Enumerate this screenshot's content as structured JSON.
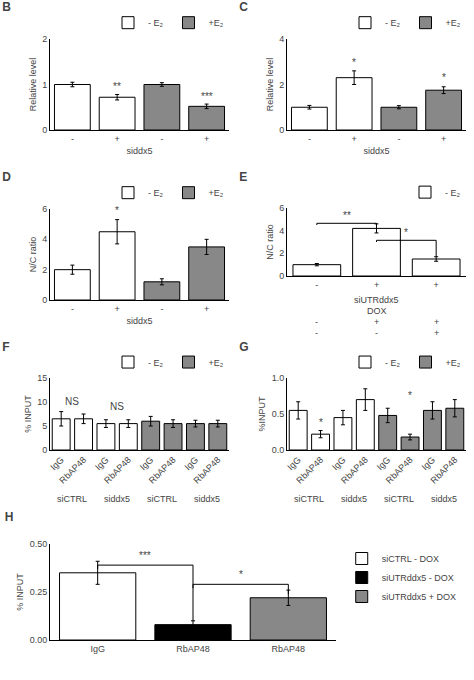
{
  "chart_data": [
    {
      "type": "bar",
      "title": "B",
      "categories": [
        "-",
        "+",
        "-",
        "+"
      ],
      "xlabel": "siddx5",
      "ylabel": "Relative level",
      "series": [
        {
          "name": "- E₂",
          "color": "white",
          "values": [
            1.0,
            0.72,
            null,
            null
          ],
          "errors": [
            0.05,
            0.06,
            null,
            null
          ]
        },
        {
          "name": "+E₂",
          "color": "#888888",
          "values": [
            null,
            null,
            1.0,
            0.52
          ],
          "errors": [
            null,
            null,
            0.04,
            0.05
          ]
        }
      ],
      "ylim": [
        0,
        2
      ],
      "yticks": [
        0,
        1,
        2
      ],
      "grid": false,
      "legend": "top",
      "annotations": [
        {
          "x": 1,
          "y": 0.79,
          "text": "**"
        },
        {
          "x": 3,
          "y": 0.58,
          "text": "***"
        }
      ]
    },
    {
      "type": "bar",
      "title": "C",
      "categories": [
        "-",
        "+",
        "-",
        "+"
      ],
      "xlabel": "siddx5",
      "ylabel": "Relative level",
      "series": [
        {
          "name": "- E₂",
          "color": "white",
          "values": [
            1.0,
            2.3,
            null,
            null
          ],
          "errors": [
            0.08,
            0.3,
            null,
            null
          ]
        },
        {
          "name": "+E₂",
          "color": "#888888",
          "values": [
            null,
            null,
            1.0,
            1.75
          ],
          "errors": [
            null,
            null,
            0.07,
            0.15
          ]
        }
      ],
      "ylim": [
        0,
        4
      ],
      "yticks": [
        0,
        2,
        4
      ],
      "grid": false,
      "legend": "top",
      "annotations": [
        {
          "x": 1,
          "y": 2.65,
          "text": "*"
        },
        {
          "x": 3,
          "y": 2.0,
          "text": "*"
        }
      ]
    },
    {
      "type": "bar",
      "title": "D",
      "categories": [
        "-",
        "+",
        "-",
        "+"
      ],
      "xlabel": "siddx5",
      "ylabel": "N/C ratio",
      "series": [
        {
          "name": "- E₂",
          "color": "white",
          "values": [
            2.0,
            4.5,
            null,
            null
          ],
          "errors": [
            0.3,
            0.8,
            null,
            null
          ]
        },
        {
          "name": "+E₂",
          "color": "#888888",
          "values": [
            null,
            null,
            1.2,
            3.5
          ],
          "errors": [
            null,
            null,
            0.2,
            0.5
          ]
        }
      ],
      "ylim": [
        0,
        6
      ],
      "yticks": [
        0,
        2,
        4,
        6
      ],
      "grid": false,
      "legend": "top",
      "annotations": [
        {
          "x": 1,
          "y": 5.4,
          "text": "*"
        }
      ]
    },
    {
      "type": "bar",
      "title": "E",
      "categories": [
        "-",
        "+",
        "+"
      ],
      "ylabel": "N/C ratio",
      "series": [
        {
          "name": "- E₂",
          "color": "white",
          "values": [
            1.0,
            4.2,
            1.5
          ],
          "errors": [
            0.1,
            0.4,
            0.2
          ]
        }
      ],
      "ylim": [
        0,
        6
      ],
      "yticks": [
        0,
        2,
        4,
        6
      ],
      "grid": false,
      "legend": "top",
      "annotations": [
        {
          "x": 0.5,
          "y": 4.7,
          "text": "**",
          "bracket": {
            "x": [
              0,
              0,
              1,
              1
            ],
            "y": [
              4.5,
              4.65,
              4.65,
              4.3
            ]
          }
        },
        {
          "x": 1.5,
          "y": 3.2,
          "text": "*",
          "bracket": {
            "x": [
              1,
              1,
              2,
              2
            ],
            "y": [
              3.0,
              3.15,
              3.15,
              1.7
            ]
          }
        },
        {
          "x": 1,
          "row": 1,
          "text": "siUTRddx5"
        },
        {
          "x": 1,
          "row": 2,
          "text": "DOX"
        },
        {
          "x": 0,
          "row": 3,
          "text": "-"
        },
        {
          "x": 1,
          "row": 3,
          "text": "+"
        },
        {
          "x": 2,
          "row": 3,
          "text": "+"
        },
        {
          "x": 0,
          "row": 4,
          "text": "-"
        },
        {
          "x": 1,
          "row": 4,
          "text": "-"
        },
        {
          "x": 2,
          "row": 4,
          "text": "+"
        }
      ]
    },
    {
      "type": "bar",
      "title": "F",
      "categories": [
        "IgG",
        "RbAP48",
        "IgG",
        "RbAP48",
        "IgG",
        "RbAP48",
        "IgG",
        "RbAP48"
      ],
      "ylabel": "% INPUT",
      "series": [
        {
          "name": "- E₂",
          "color": "white",
          "values": [
            6.5,
            6.5,
            5.5,
            5.5,
            null,
            null,
            null,
            null
          ],
          "errors": [
            1.5,
            1.0,
            0.8,
            0.8,
            null,
            null,
            null,
            null
          ]
        },
        {
          "name": "+E₂",
          "color": "#888888",
          "values": [
            null,
            null,
            null,
            null,
            6.0,
            5.5,
            5.5,
            5.5
          ],
          "errors": [
            null,
            null,
            null,
            null,
            1.0,
            0.8,
            0.7,
            0.7
          ]
        }
      ],
      "ylim": [
        0,
        15
      ],
      "yticks": [
        0,
        5,
        10,
        15
      ],
      "grid": false,
      "legend": "top",
      "annotations": [
        {
          "x": 0.5,
          "y": 8.5,
          "text": "NS"
        },
        {
          "x": 2.5,
          "y": 7.5,
          "text": "NS"
        },
        {
          "x": 0.5,
          "row": 1,
          "text": "siCTRL"
        },
        {
          "x": 2.5,
          "row": 1,
          "text": "siddx5"
        },
        {
          "x": 4.5,
          "row": 1,
          "text": "siCTRL"
        },
        {
          "x": 6.5,
          "row": 1,
          "text": "siddx5"
        }
      ]
    },
    {
      "type": "bar",
      "title": "G",
      "categories": [
        "IgG",
        "RbAP48",
        "IgG",
        "RbAP48",
        "IgG",
        "RbAP48",
        "IgG",
        "RbAP48"
      ],
      "ylabel": "%INPUT",
      "series": [
        {
          "name": "- E₂",
          "color": "white",
          "values": [
            0.55,
            0.22,
            0.45,
            0.7,
            null,
            null,
            null,
            null
          ],
          "errors": [
            0.12,
            0.05,
            0.1,
            0.15,
            null,
            null,
            null,
            null
          ]
        },
        {
          "name": "+E₂",
          "color": "#888888",
          "values": [
            null,
            null,
            null,
            null,
            0.48,
            0.18,
            0.55,
            0.58
          ],
          "errors": [
            null,
            null,
            null,
            null,
            0.1,
            0.04,
            0.12,
            0.12
          ]
        }
      ],
      "ylim": [
        0,
        1.0
      ],
      "yticks": [
        {
          "value": 0,
          "label": "0.0"
        },
        0.5,
        {
          "value": 1.0,
          "label": "1.0"
        }
      ],
      "grid": false,
      "legend": "top",
      "annotations": [
        {
          "x": 1,
          "y": 0.28,
          "text": "*"
        },
        {
          "x": 5,
          "y": 0.65,
          "text": "*"
        },
        {
          "x": 0.5,
          "row": 1,
          "text": "siCTRL"
        },
        {
          "x": 2.5,
          "row": 1,
          "text": "siddx5"
        },
        {
          "x": 4.5,
          "row": 1,
          "text": "siCTRL"
        },
        {
          "x": 6.5,
          "row": 1,
          "text": "siddx5"
        }
      ]
    },
    {
      "type": "bar",
      "title": "H",
      "categories": [
        "IgG",
        "RbAP48",
        "RbAP48"
      ],
      "ylabel": "% INPUT",
      "series": [
        {
          "name": "siCTRL - DOX",
          "color": "white",
          "values": [
            0.35,
            null,
            null
          ],
          "errors": [
            0.06,
            null,
            null
          ]
        },
        {
          "name": "siUTRddx5 - DOX",
          "color": "black",
          "values": [
            null,
            0.08,
            null
          ],
          "errors": [
            null,
            0.02,
            null
          ]
        },
        {
          "name": "siUTRddx5 + DOX",
          "color": "#888888",
          "values": [
            null,
            null,
            0.22
          ],
          "errors": [
            null,
            null,
            0.04
          ]
        }
      ],
      "ylim": [
        0,
        0.5
      ],
      "yticks": [
        {
          "value": 0,
          "label": "0.00"
        },
        0.25,
        {
          "value": 0.5,
          "label": "0.50"
        }
      ],
      "grid": false,
      "legend": "right",
      "annotations": [
        {
          "x": 0.5,
          "y": 0.4,
          "text": "***",
          "bracket": {
            "x": [
              0,
              0,
              1,
              1
            ],
            "y": [
              0.37,
              0.39,
              0.39,
              0.1
            ]
          }
        },
        {
          "x": 1.5,
          "y": 0.3,
          "text": "*",
          "bracket": {
            "x": [
              1,
              1,
              2,
              2
            ],
            "y": [
              0.27,
              0.29,
              0.29,
              0.24
            ]
          }
        }
      ]
    }
  ]
}
